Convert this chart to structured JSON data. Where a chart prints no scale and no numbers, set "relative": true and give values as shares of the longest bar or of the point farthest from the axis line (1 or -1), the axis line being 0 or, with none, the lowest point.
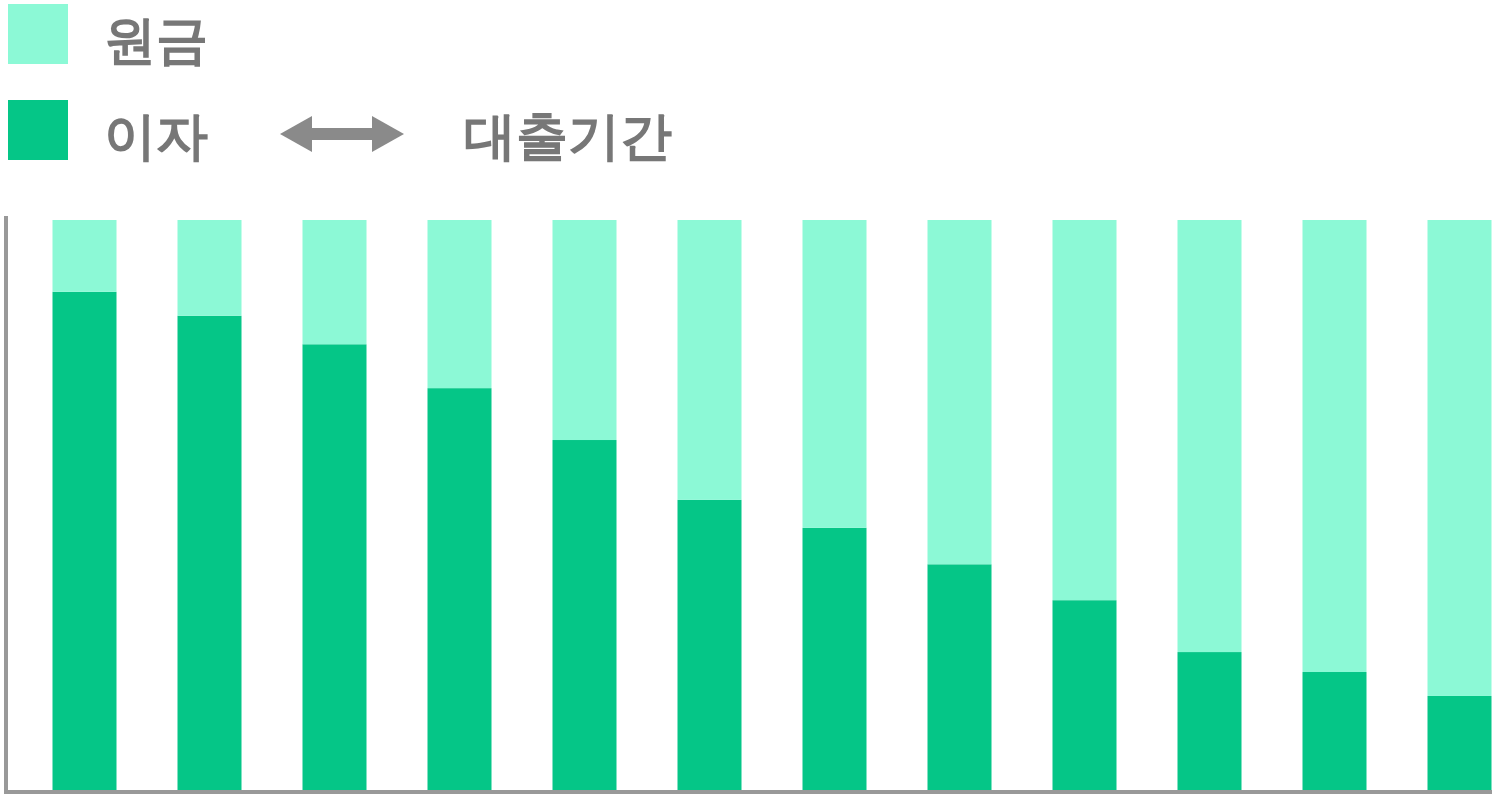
{
  "chart_data": {
    "type": "bar",
    "stacked": true,
    "relative": true,
    "xlabel": "대출기간",
    "legend": "top left",
    "categories": [
      null,
      null,
      null,
      null,
      null,
      null,
      null,
      null,
      null,
      null,
      null,
      null
    ],
    "series": [
      {
        "name": "이자",
        "color": "#05c687",
        "values": [
          0.874,
          0.832,
          0.782,
          0.705,
          0.614,
          0.509,
          0.46,
          0.396,
          0.333,
          0.242,
          0.207,
          0.165
        ]
      },
      {
        "name": "원금",
        "color": "#8cf9d6",
        "values": [
          0.126,
          0.168,
          0.218,
          0.295,
          0.386,
          0.491,
          0.54,
          0.604,
          0.667,
          0.758,
          0.793,
          0.835
        ]
      }
    ]
  }
}
